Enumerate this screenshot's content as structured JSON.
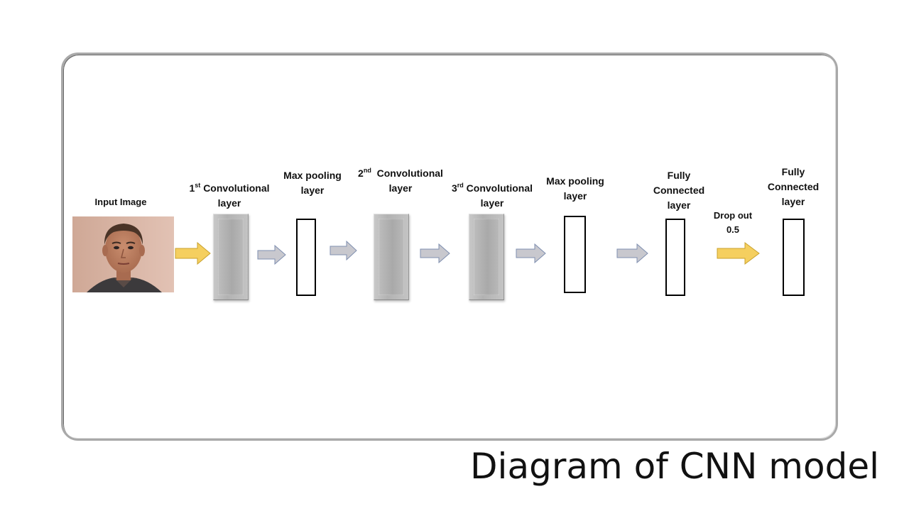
{
  "title": "Diagram of CNN model",
  "input": {
    "label": "Input Image"
  },
  "layers": {
    "conv1": {
      "num": "1",
      "sup": "st",
      "line1": "Convolutional",
      "line2": "layer"
    },
    "pool1": {
      "line1": "Max pooling",
      "line2": "layer"
    },
    "conv2": {
      "num": "2",
      "sup": "nd",
      "line1": "Convolutional",
      "line2": "layer"
    },
    "conv3": {
      "num": "3",
      "sup": "rd",
      "line1": "Convolutional",
      "line2": "layer"
    },
    "pool2": {
      "line1": "Max pooling",
      "line2": "layer"
    },
    "fc1": {
      "line1": "Fully",
      "line2": "Connected",
      "line3": "layer"
    },
    "dropout": {
      "line1": "Drop out",
      "line2": "0.5"
    },
    "fc2": {
      "line1": "Fully",
      "line2": "Connected",
      "line3": "layer"
    }
  },
  "colors": {
    "arrow_gray": "#c8c8ce",
    "arrow_gray_stroke": "#7f8fb0",
    "arrow_yellow": "#f5cf5f",
    "arrow_yellow_stroke": "#c9a22e",
    "frame": "#a9a9a9"
  }
}
